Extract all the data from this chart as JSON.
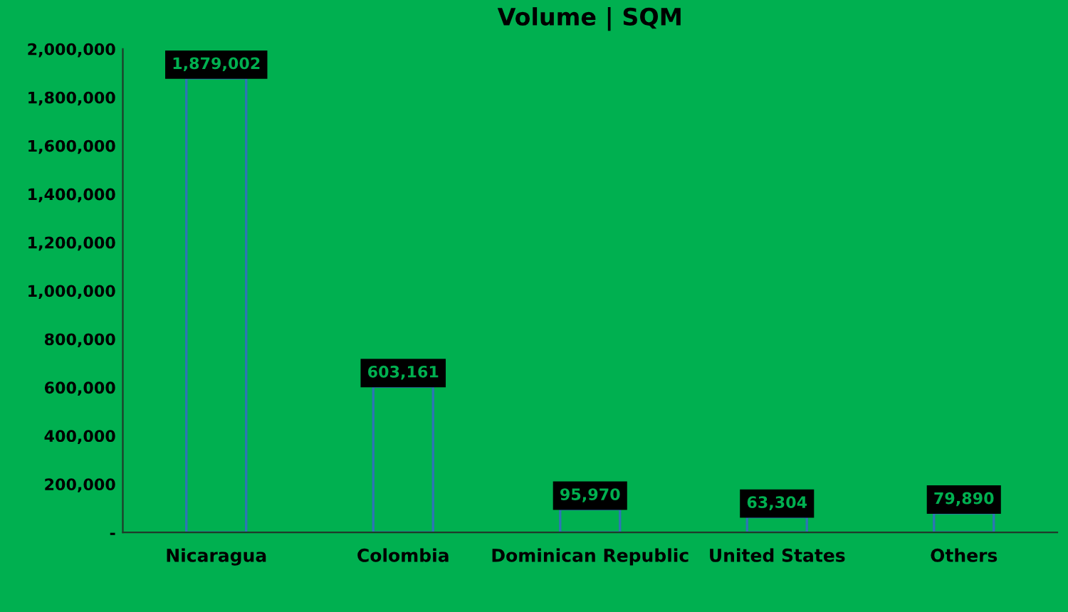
{
  "chart_data": {
    "type": "bar",
    "title": "Volume | SQM",
    "categories": [
      "Nicaragua",
      "Colombia",
      "Dominican Republic",
      "United States",
      "Others"
    ],
    "values": [
      1879002,
      603161,
      95970,
      63304,
      79890
    ],
    "color": "#00b050",
    "value_labels": [
      "1,879,002",
      "603,161",
      "95,970",
      "63,304",
      "79,890"
    ],
    "ylim": [
      0,
      2000000
    ],
    "yticks": [
      {
        "value": 0,
        "label": "-"
      },
      {
        "value": 200000,
        "label": "200,000"
      },
      {
        "value": 400000,
        "label": "400,000"
      },
      {
        "value": 600000,
        "label": "600,000"
      },
      {
        "value": 800000,
        "label": "800,000"
      },
      {
        "value": 1000000,
        "label": "1,000,000"
      },
      {
        "value": 1200000,
        "label": "1,200,000"
      },
      {
        "value": 1400000,
        "label": "1,400,000"
      },
      {
        "value": 1600000,
        "label": "1,600,000"
      },
      {
        "value": 1800000,
        "label": "1,800,000"
      },
      {
        "value": 2000000,
        "label": "2,000,000"
      }
    ],
    "grid": false,
    "legend": false
  }
}
